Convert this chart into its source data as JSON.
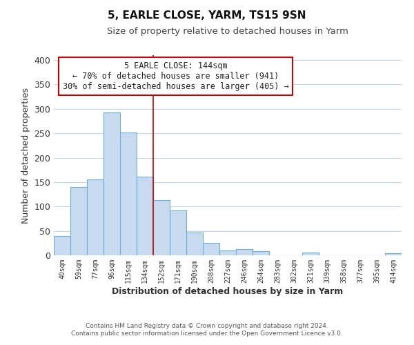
{
  "title": "5, EARLE CLOSE, YARM, TS15 9SN",
  "subtitle": "Size of property relative to detached houses in Yarm",
  "xlabel": "Distribution of detached houses by size in Yarm",
  "ylabel": "Number of detached properties",
  "footer_line1": "Contains HM Land Registry data © Crown copyright and database right 2024.",
  "footer_line2": "Contains public sector information licensed under the Open Government Licence v3.0.",
  "bar_labels": [
    "40sqm",
    "59sqm",
    "77sqm",
    "96sqm",
    "115sqm",
    "134sqm",
    "152sqm",
    "171sqm",
    "190sqm",
    "208sqm",
    "227sqm",
    "246sqm",
    "264sqm",
    "283sqm",
    "302sqm",
    "321sqm",
    "339sqm",
    "358sqm",
    "377sqm",
    "395sqm",
    "414sqm"
  ],
  "bar_values": [
    40,
    140,
    155,
    292,
    251,
    161,
    113,
    92,
    46,
    25,
    10,
    13,
    8,
    0,
    0,
    5,
    0,
    0,
    0,
    0,
    4
  ],
  "bar_color": "#c8daf0",
  "bar_edge_color": "#6baed6",
  "vline_color": "#cc0000",
  "annotation_title": "5 EARLE CLOSE: 144sqm",
  "annotation_line1": "← 70% of detached houses are smaller (941)",
  "annotation_line2": "30% of semi-detached houses are larger (405) →",
  "annotation_box_facecolor": "#ffffff",
  "annotation_box_edgecolor": "#cc0000",
  "ylim": [
    0,
    410
  ],
  "yticks": [
    0,
    50,
    100,
    150,
    200,
    250,
    300,
    350,
    400
  ],
  "background_color": "#ffffff",
  "grid_color": "#c8d4e8"
}
